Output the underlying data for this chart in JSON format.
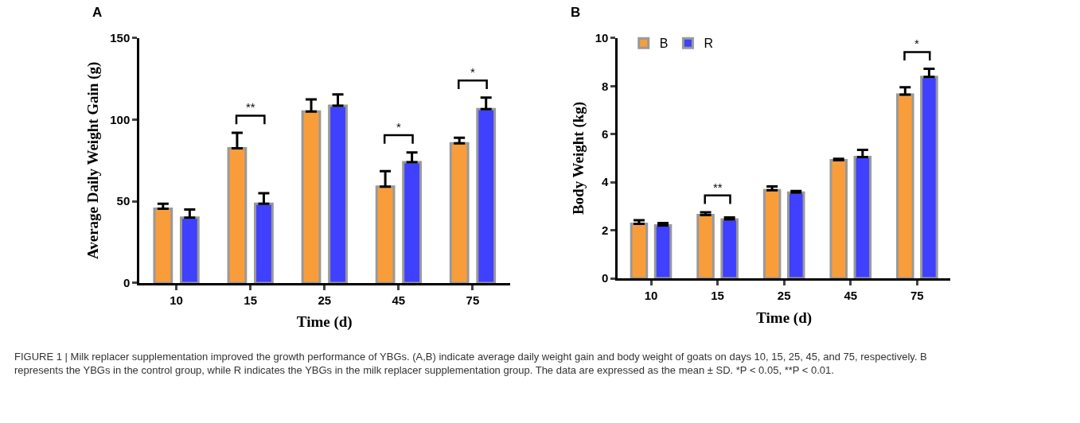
{
  "chart_data": [
    {
      "type": "bar",
      "title": "A",
      "xlabel": "Time (d)",
      "ylabel": "Average Daily Weight Gain (g)",
      "categories": [
        "10",
        "15",
        "25",
        "45",
        "75"
      ],
      "series": [
        {
          "color": "#f99d3a",
          "values": [
            45.5,
            82.5,
            105,
            59,
            85.5
          ],
          "errors": [
            [
              45.5,
              48.5
            ],
            [
              82.5,
              92
            ],
            [
              105,
              112.5
            ],
            [
              59,
              68.5
            ],
            [
              85.5,
              89
            ]
          ]
        },
        {
          "color": "#4040ff",
          "values": [
            40,
            48.5,
            108.5,
            74,
            106.5
          ],
          "errors": [
            [
              40,
              45
            ],
            [
              48.5,
              55
            ],
            [
              108.5,
              115.5
            ],
            [
              74,
              80
            ],
            [
              106.5,
              113.5
            ]
          ]
        }
      ],
      "ylim": [
        0,
        150
      ],
      "yticks": [
        0,
        50,
        100,
        150
      ],
      "annotations": [
        "**",
        "*",
        "*"
      ]
    },
    {
      "type": "bar",
      "title": "B",
      "xlabel": "Time (d)",
      "ylabel": "Body Weight (kg)",
      "categories": [
        "10",
        "15",
        "25",
        "45",
        "75"
      ],
      "series": [
        {
          "name": "B",
          "color": "#f99d3a",
          "values": [
            2.27,
            2.63,
            3.67,
            4.92,
            7.65
          ],
          "errors": [
            [
              2.27,
              2.42
            ],
            [
              2.63,
              2.75
            ],
            [
              3.67,
              3.82
            ],
            [
              4.92,
              4.97
            ],
            [
              7.65,
              7.95
            ]
          ]
        },
        {
          "name": "R",
          "color": "#4040ff",
          "values": [
            2.2,
            2.45,
            3.57,
            5.05,
            8.38
          ],
          "errors": [
            [
              2.2,
              2.3
            ],
            [
              2.45,
              2.53
            ],
            [
              3.57,
              3.63
            ],
            [
              5.05,
              5.35
            ],
            [
              8.38,
              8.72
            ]
          ]
        }
      ],
      "ylim": [
        0,
        10
      ],
      "yticks": [
        0,
        2,
        4,
        6,
        8,
        10
      ],
      "legend": "top left",
      "annotations": [
        "**",
        "*",
        "FIGURE 1 | Milk replacer supplementation improved the growth performance of YBGs. (A,B) indicate average daily weight gain and body weight of goats on days 10, 15, 25, 45, and 75, respectively. B represents the YBGs in the control group, while R indicates the YBGs in the milk replacer supplementation group. The data are expressed as the mean ± SD. *P < 0.05, **P < 0.01."
      ]
    }
  ]
}
